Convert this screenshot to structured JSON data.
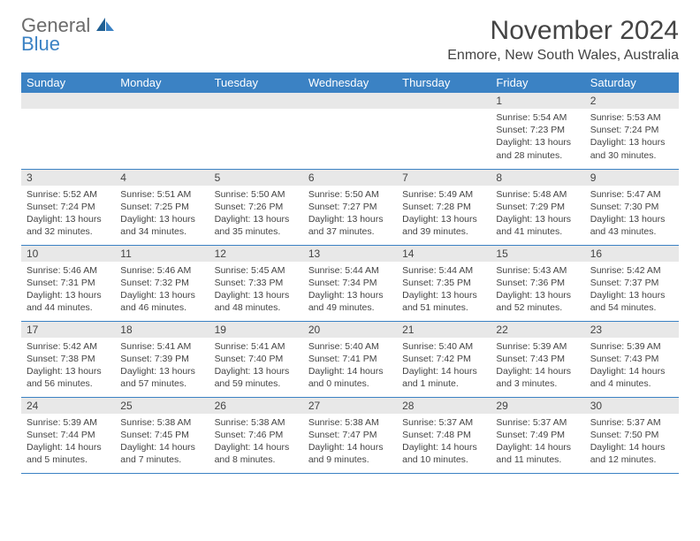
{
  "brand": {
    "general": "General",
    "blue": "Blue"
  },
  "title": "November 2024",
  "location": "Enmore, New South Wales, Australia",
  "colors": {
    "header_bg": "#3b82c4",
    "header_fg": "#ffffff",
    "daynum_bg": "#e8e8e8",
    "text": "#444444",
    "logo_gray": "#6b6b6b",
    "logo_blue": "#3b82c4",
    "border": "#3b82c4"
  },
  "day_names": [
    "Sunday",
    "Monday",
    "Tuesday",
    "Wednesday",
    "Thursday",
    "Friday",
    "Saturday"
  ],
  "weeks": [
    [
      {
        "n": "",
        "lines": []
      },
      {
        "n": "",
        "lines": []
      },
      {
        "n": "",
        "lines": []
      },
      {
        "n": "",
        "lines": []
      },
      {
        "n": "",
        "lines": []
      },
      {
        "n": "1",
        "lines": [
          "Sunrise: 5:54 AM",
          "Sunset: 7:23 PM",
          "Daylight: 13 hours and 28 minutes."
        ]
      },
      {
        "n": "2",
        "lines": [
          "Sunrise: 5:53 AM",
          "Sunset: 7:24 PM",
          "Daylight: 13 hours and 30 minutes."
        ]
      }
    ],
    [
      {
        "n": "3",
        "lines": [
          "Sunrise: 5:52 AM",
          "Sunset: 7:24 PM",
          "Daylight: 13 hours and 32 minutes."
        ]
      },
      {
        "n": "4",
        "lines": [
          "Sunrise: 5:51 AM",
          "Sunset: 7:25 PM",
          "Daylight: 13 hours and 34 minutes."
        ]
      },
      {
        "n": "5",
        "lines": [
          "Sunrise: 5:50 AM",
          "Sunset: 7:26 PM",
          "Daylight: 13 hours and 35 minutes."
        ]
      },
      {
        "n": "6",
        "lines": [
          "Sunrise: 5:50 AM",
          "Sunset: 7:27 PM",
          "Daylight: 13 hours and 37 minutes."
        ]
      },
      {
        "n": "7",
        "lines": [
          "Sunrise: 5:49 AM",
          "Sunset: 7:28 PM",
          "Daylight: 13 hours and 39 minutes."
        ]
      },
      {
        "n": "8",
        "lines": [
          "Sunrise: 5:48 AM",
          "Sunset: 7:29 PM",
          "Daylight: 13 hours and 41 minutes."
        ]
      },
      {
        "n": "9",
        "lines": [
          "Sunrise: 5:47 AM",
          "Sunset: 7:30 PM",
          "Daylight: 13 hours and 43 minutes."
        ]
      }
    ],
    [
      {
        "n": "10",
        "lines": [
          "Sunrise: 5:46 AM",
          "Sunset: 7:31 PM",
          "Daylight: 13 hours and 44 minutes."
        ]
      },
      {
        "n": "11",
        "lines": [
          "Sunrise: 5:46 AM",
          "Sunset: 7:32 PM",
          "Daylight: 13 hours and 46 minutes."
        ]
      },
      {
        "n": "12",
        "lines": [
          "Sunrise: 5:45 AM",
          "Sunset: 7:33 PM",
          "Daylight: 13 hours and 48 minutes."
        ]
      },
      {
        "n": "13",
        "lines": [
          "Sunrise: 5:44 AM",
          "Sunset: 7:34 PM",
          "Daylight: 13 hours and 49 minutes."
        ]
      },
      {
        "n": "14",
        "lines": [
          "Sunrise: 5:44 AM",
          "Sunset: 7:35 PM",
          "Daylight: 13 hours and 51 minutes."
        ]
      },
      {
        "n": "15",
        "lines": [
          "Sunrise: 5:43 AM",
          "Sunset: 7:36 PM",
          "Daylight: 13 hours and 52 minutes."
        ]
      },
      {
        "n": "16",
        "lines": [
          "Sunrise: 5:42 AM",
          "Sunset: 7:37 PM",
          "Daylight: 13 hours and 54 minutes."
        ]
      }
    ],
    [
      {
        "n": "17",
        "lines": [
          "Sunrise: 5:42 AM",
          "Sunset: 7:38 PM",
          "Daylight: 13 hours and 56 minutes."
        ]
      },
      {
        "n": "18",
        "lines": [
          "Sunrise: 5:41 AM",
          "Sunset: 7:39 PM",
          "Daylight: 13 hours and 57 minutes."
        ]
      },
      {
        "n": "19",
        "lines": [
          "Sunrise: 5:41 AM",
          "Sunset: 7:40 PM",
          "Daylight: 13 hours and 59 minutes."
        ]
      },
      {
        "n": "20",
        "lines": [
          "Sunrise: 5:40 AM",
          "Sunset: 7:41 PM",
          "Daylight: 14 hours and 0 minutes."
        ]
      },
      {
        "n": "21",
        "lines": [
          "Sunrise: 5:40 AM",
          "Sunset: 7:42 PM",
          "Daylight: 14 hours and 1 minute."
        ]
      },
      {
        "n": "22",
        "lines": [
          "Sunrise: 5:39 AM",
          "Sunset: 7:43 PM",
          "Daylight: 14 hours and 3 minutes."
        ]
      },
      {
        "n": "23",
        "lines": [
          "Sunrise: 5:39 AM",
          "Sunset: 7:43 PM",
          "Daylight: 14 hours and 4 minutes."
        ]
      }
    ],
    [
      {
        "n": "24",
        "lines": [
          "Sunrise: 5:39 AM",
          "Sunset: 7:44 PM",
          "Daylight: 14 hours and 5 minutes."
        ]
      },
      {
        "n": "25",
        "lines": [
          "Sunrise: 5:38 AM",
          "Sunset: 7:45 PM",
          "Daylight: 14 hours and 7 minutes."
        ]
      },
      {
        "n": "26",
        "lines": [
          "Sunrise: 5:38 AM",
          "Sunset: 7:46 PM",
          "Daylight: 14 hours and 8 minutes."
        ]
      },
      {
        "n": "27",
        "lines": [
          "Sunrise: 5:38 AM",
          "Sunset: 7:47 PM",
          "Daylight: 14 hours and 9 minutes."
        ]
      },
      {
        "n": "28",
        "lines": [
          "Sunrise: 5:37 AM",
          "Sunset: 7:48 PM",
          "Daylight: 14 hours and 10 minutes."
        ]
      },
      {
        "n": "29",
        "lines": [
          "Sunrise: 5:37 AM",
          "Sunset: 7:49 PM",
          "Daylight: 14 hours and 11 minutes."
        ]
      },
      {
        "n": "30",
        "lines": [
          "Sunrise: 5:37 AM",
          "Sunset: 7:50 PM",
          "Daylight: 14 hours and 12 minutes."
        ]
      }
    ]
  ]
}
